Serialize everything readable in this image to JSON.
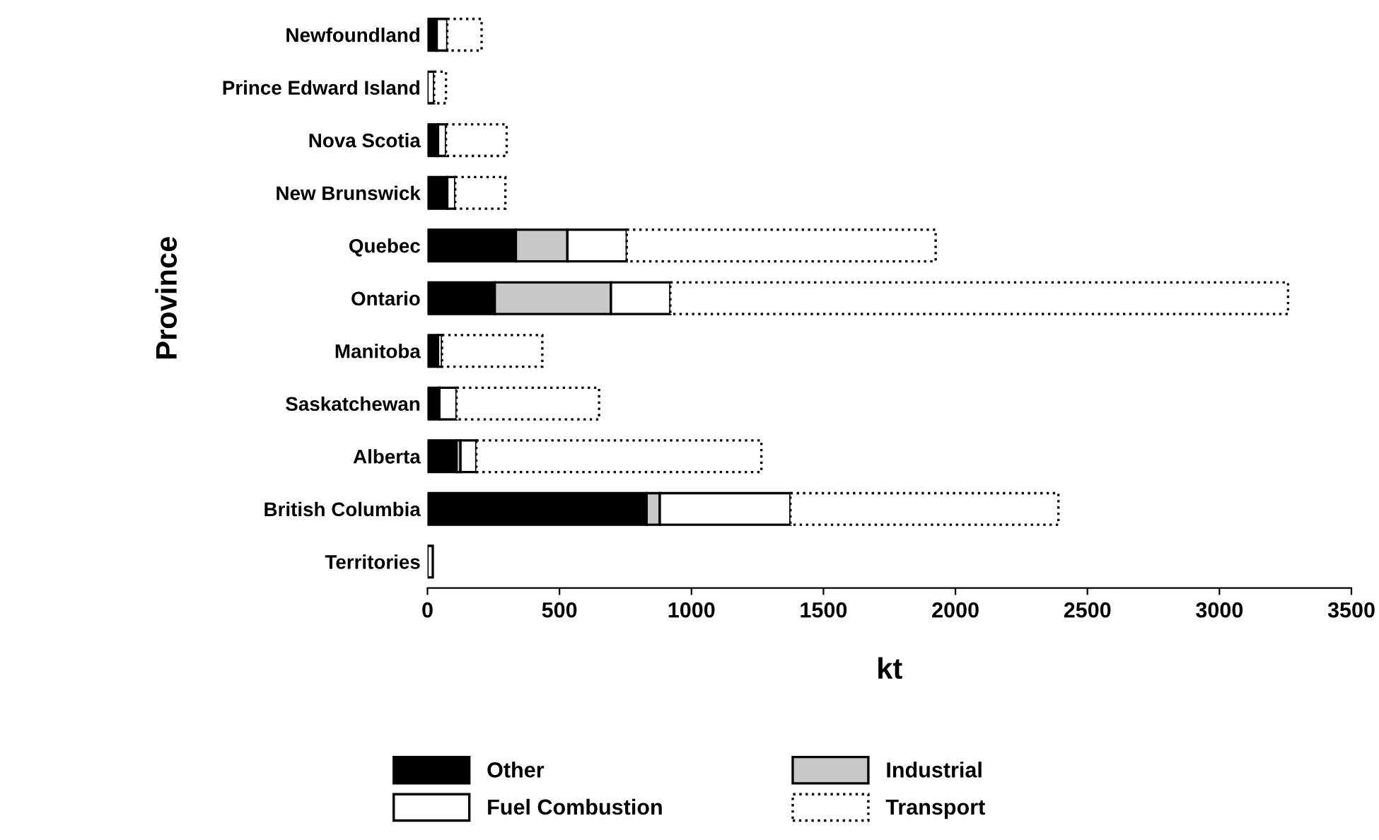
{
  "chart_data": {
    "type": "bar",
    "orientation": "horizontal",
    "stacked": true,
    "xlabel": "kt",
    "ylabel": "Province",
    "categories": [
      "Newfoundland",
      "Prince Edward Island",
      "Nova Scotia",
      "New Brunswick",
      "Quebec",
      "Ontario",
      "Manitoba",
      "Saskatchewan",
      "Alberta",
      "British Columbia",
      "Territories"
    ],
    "series": [
      {
        "name": "Other",
        "color": "#000000",
        "values": [
          35,
          null,
          40,
          75,
          335,
          255,
          40,
          45,
          110,
          830,
          null
        ]
      },
      {
        "name": "Industrial",
        "color": "#c8c8c8",
        "values": [
          null,
          null,
          null,
          null,
          195,
          440,
          null,
          null,
          15,
          50,
          null
        ]
      },
      {
        "name": "Fuel Combustion",
        "color": "#ffffff",
        "values": [
          40,
          25,
          30,
          30,
          225,
          225,
          15,
          65,
          60,
          495,
          20
        ]
      },
      {
        "name": "Transport",
        "color": "#ffffff",
        "line_style": "dotted",
        "values": [
          130,
          45,
          230,
          190,
          1170,
          2340,
          380,
          540,
          1080,
          1015,
          null
        ]
      }
    ],
    "xlim": [
      0,
      3500
    ],
    "xticks": [
      0,
      500,
      1000,
      1500,
      2000,
      2500,
      3000,
      3500
    ],
    "legend": "bottom",
    "grid": false
  }
}
